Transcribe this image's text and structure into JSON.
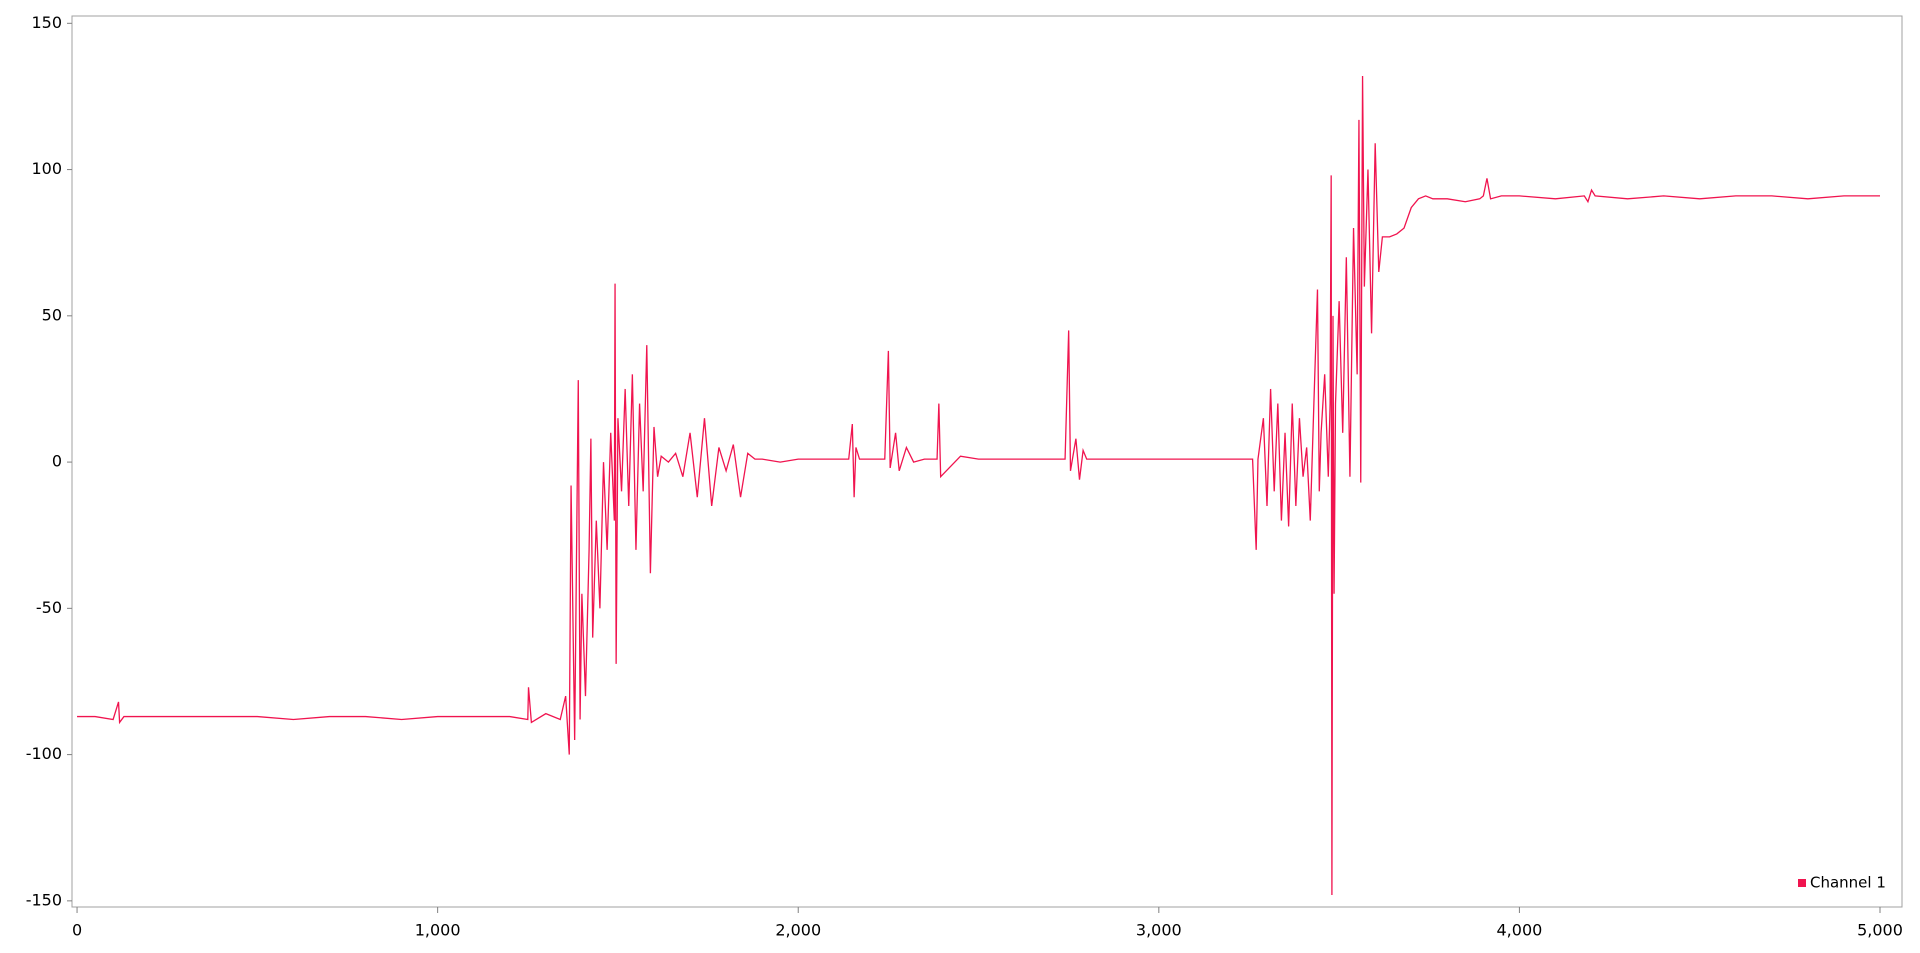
{
  "chart_data": {
    "type": "line",
    "x": [
      0,
      50,
      100,
      115,
      118,
      130,
      200,
      300,
      400,
      500,
      600,
      700,
      800,
      900,
      1000,
      1100,
      1200,
      1250,
      1252,
      1260,
      1300,
      1340,
      1355,
      1365,
      1370,
      1380,
      1390,
      1395,
      1400,
      1410,
      1420,
      1425,
      1430,
      1440,
      1450,
      1460,
      1470,
      1480,
      1490,
      1492,
      1495,
      1500,
      1510,
      1520,
      1530,
      1540,
      1550,
      1560,
      1570,
      1580,
      1590,
      1600,
      1610,
      1620,
      1640,
      1660,
      1680,
      1700,
      1720,
      1740,
      1760,
      1780,
      1800,
      1820,
      1840,
      1860,
      1880,
      1900,
      1950,
      2000,
      2050,
      2100,
      2140,
      2150,
      2155,
      2160,
      2170,
      2200,
      2240,
      2250,
      2255,
      2270,
      2280,
      2300,
      2320,
      2350,
      2385,
      2390,
      2395,
      2450,
      2500,
      2600,
      2700,
      2740,
      2750,
      2755,
      2770,
      2780,
      2790,
      2800,
      2900,
      3000,
      3100,
      3200,
      3260,
      3270,
      3275,
      3290,
      3300,
      3310,
      3320,
      3330,
      3340,
      3350,
      3360,
      3370,
      3380,
      3390,
      3400,
      3410,
      3420,
      3430,
      3440,
      3445,
      3450,
      3460,
      3470,
      3475,
      3478,
      3480,
      3483,
      3486,
      3490,
      3500,
      3510,
      3520,
      3530,
      3540,
      3550,
      3555,
      3560,
      3565,
      3570,
      3580,
      3590,
      3600,
      3610,
      3620,
      3640,
      3660,
      3680,
      3700,
      3720,
      3740,
      3760,
      3780,
      3800,
      3850,
      3890,
      3900,
      3910,
      3920,
      3950,
      4000,
      4100,
      4180,
      4190,
      4200,
      4210,
      4300,
      4400,
      4500,
      4600,
      4700,
      4800,
      4900,
      5000
    ],
    "series": [
      {
        "name": "Channel 1",
        "color": "#f0144f",
        "values": [
          -87,
          -87,
          -88,
          -82,
          -89,
          -87,
          -87,
          -87,
          -87,
          -87,
          -88,
          -87,
          -87,
          -88,
          -87,
          -87,
          -87,
          -88,
          -77,
          -89,
          -86,
          -88,
          -80,
          -100,
          -8,
          -95,
          28,
          -88,
          -45,
          -80,
          -30,
          8,
          -60,
          -20,
          -50,
          0,
          -30,
          10,
          -20,
          61,
          -69,
          15,
          -10,
          25,
          -15,
          30,
          -30,
          20,
          -10,
          40,
          -38,
          12,
          -5,
          2,
          0,
          3,
          -5,
          10,
          -12,
          15,
          -15,
          5,
          -3,
          6,
          -12,
          3,
          1,
          1,
          0,
          1,
          1,
          1,
          1,
          13,
          -12,
          5,
          1,
          1,
          1,
          38,
          -2,
          10,
          -3,
          5,
          0,
          1,
          1,
          20,
          -5,
          2,
          1,
          1,
          1,
          1,
          45,
          -3,
          8,
          -6,
          4,
          1,
          1,
          1,
          1,
          1,
          1,
          -30,
          1,
          15,
          -15,
          25,
          -10,
          20,
          -20,
          10,
          -22,
          20,
          -15,
          15,
          -5,
          5,
          -20,
          20,
          59,
          -10,
          10,
          30,
          -5,
          20,
          98,
          -148,
          50,
          -45,
          20,
          55,
          10,
          70,
          -5,
          80,
          30,
          117,
          -7,
          132,
          60,
          100,
          44,
          109,
          65,
          77,
          77,
          78,
          80,
          87,
          90,
          91,
          90,
          90,
          90,
          89,
          90,
          91,
          97,
          90,
          91,
          91,
          90,
          91,
          89,
          93,
          91,
          90,
          91,
          90,
          91,
          91,
          90,
          91,
          91
        ]
      }
    ],
    "xlim": [
      -14,
      5061
    ],
    "ylim": [
      -152.1,
      152.5
    ],
    "xticks": [
      0,
      {
        "value": 1000,
        "label": "1,000"
      },
      {
        "value": 2000,
        "label": "2,000"
      },
      {
        "value": 3000,
        "label": "3,000"
      },
      {
        "value": 4000,
        "label": "4,000"
      },
      {
        "value": 5000,
        "label": "5,000"
      }
    ],
    "yticks": [
      -150,
      -100,
      -50,
      0,
      50,
      100,
      150
    ],
    "legend": "lower right"
  }
}
